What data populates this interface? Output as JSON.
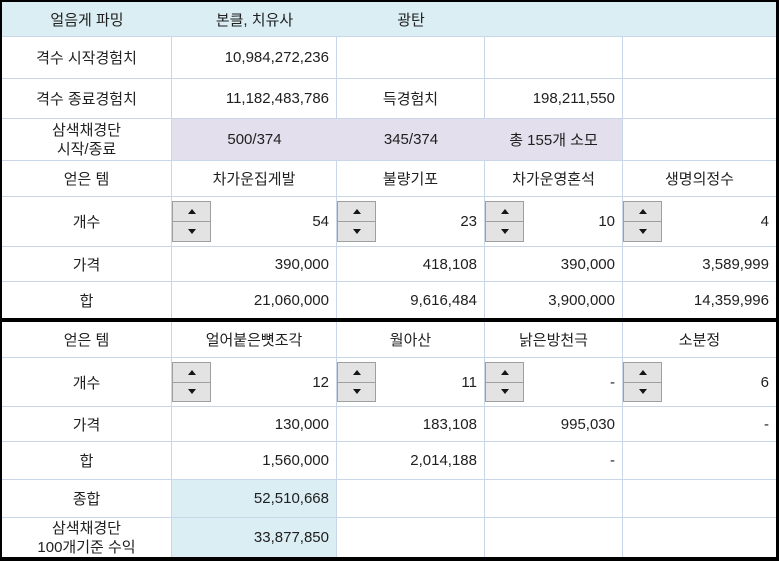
{
  "header": {
    "title": "얼음게 파밍",
    "party_main": "본클, 치유사",
    "party_sub": "광탄"
  },
  "exp": {
    "start_label": "격수 시작경험치",
    "start_value": "10,984,272,236",
    "end_label": "격수 종료경험치",
    "end_value": "11,182,483,786",
    "gain_label": "득경험치",
    "gain_value": "198,211,550"
  },
  "dumpling": {
    "label_line1": "삼색채경단",
    "label_line2": "시작/종료",
    "main_value": "500/374",
    "sub_value": "345/374",
    "consumed": "총 155개 소모"
  },
  "labels": {
    "items": "얻은 템",
    "count": "개수",
    "price": "가격",
    "sum": "합",
    "grand_total": "종합",
    "profit_line1": "삼색채경단",
    "profit_line2": "100개기준 수익"
  },
  "block1": {
    "items": [
      {
        "name": "차가운집게발",
        "count": "54",
        "price": "390,000",
        "sum": "21,060,000"
      },
      {
        "name": "불량기포",
        "count": "23",
        "price": "418,108",
        "sum": "9,616,484"
      },
      {
        "name": "차가운영혼석",
        "count": "10",
        "price": "390,000",
        "sum": "3,900,000"
      },
      {
        "name": "생명의정수",
        "count": "4",
        "price": "3,589,999",
        "sum": "14,359,996"
      }
    ]
  },
  "block2": {
    "items": [
      {
        "name": "얼어붙은뼛조각",
        "count": "12",
        "price": "130,000",
        "sum": "1,560,000"
      },
      {
        "name": "월아산",
        "count": "11",
        "price": "183,108",
        "sum": "2,014,188"
      },
      {
        "name": "낡은방천극",
        "count": "-",
        "price": "995,030",
        "sum": "-"
      },
      {
        "name": "소분정",
        "count": "6",
        "price": "-",
        "sum": ""
      }
    ]
  },
  "totals": {
    "grand_total": "52,510,668",
    "profit_per_100": "33,877,850"
  },
  "colors": {
    "header_bg": "#daeef3",
    "highlight_purple": "#e4dfec",
    "total_bg": "#daeef3",
    "gridline": "#c9d6e7",
    "outer_border": "#000000"
  }
}
